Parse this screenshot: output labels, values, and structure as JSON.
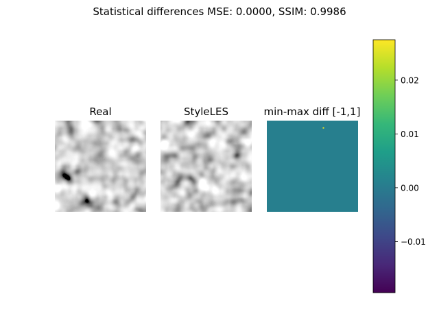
{
  "figure": {
    "suptitle": "Statistical differences MSE: 0.0000, SSIM: 0.9986"
  },
  "chart_data": [
    {
      "type": "heatmap",
      "title": "Real",
      "colormap": "gray",
      "axes_visible": false,
      "texture_seed": 7
    },
    {
      "type": "heatmap",
      "title": "StyleLES",
      "colormap": "gray",
      "axes_visible": false,
      "texture_seed": 7
    },
    {
      "type": "heatmap",
      "title": "min-max diff [-1,1]",
      "colormap": "viridis",
      "axes_visible": false,
      "background_value": 0.0,
      "fill_color": "#277f8e",
      "outliers": [
        {
          "x_frac": 0.62,
          "y_frac": 0.08,
          "value": 0.0275,
          "color": "#f3e51e"
        }
      ]
    },
    {
      "type": "colorbar",
      "colormap": "viridis",
      "vmin": -0.0195,
      "vmax": 0.0275,
      "ticks": [
        0.02,
        0.01,
        0.0,
        -0.01
      ],
      "tick_labels": [
        "0.02",
        "0.01",
        "0.00",
        "−0.01"
      ]
    }
  ],
  "colors": {
    "viridis": [
      "#440154",
      "#482878",
      "#3e4989",
      "#31688e",
      "#26828e",
      "#1f9e89",
      "#35b779",
      "#6ece58",
      "#b5de2b",
      "#fde725"
    ]
  }
}
